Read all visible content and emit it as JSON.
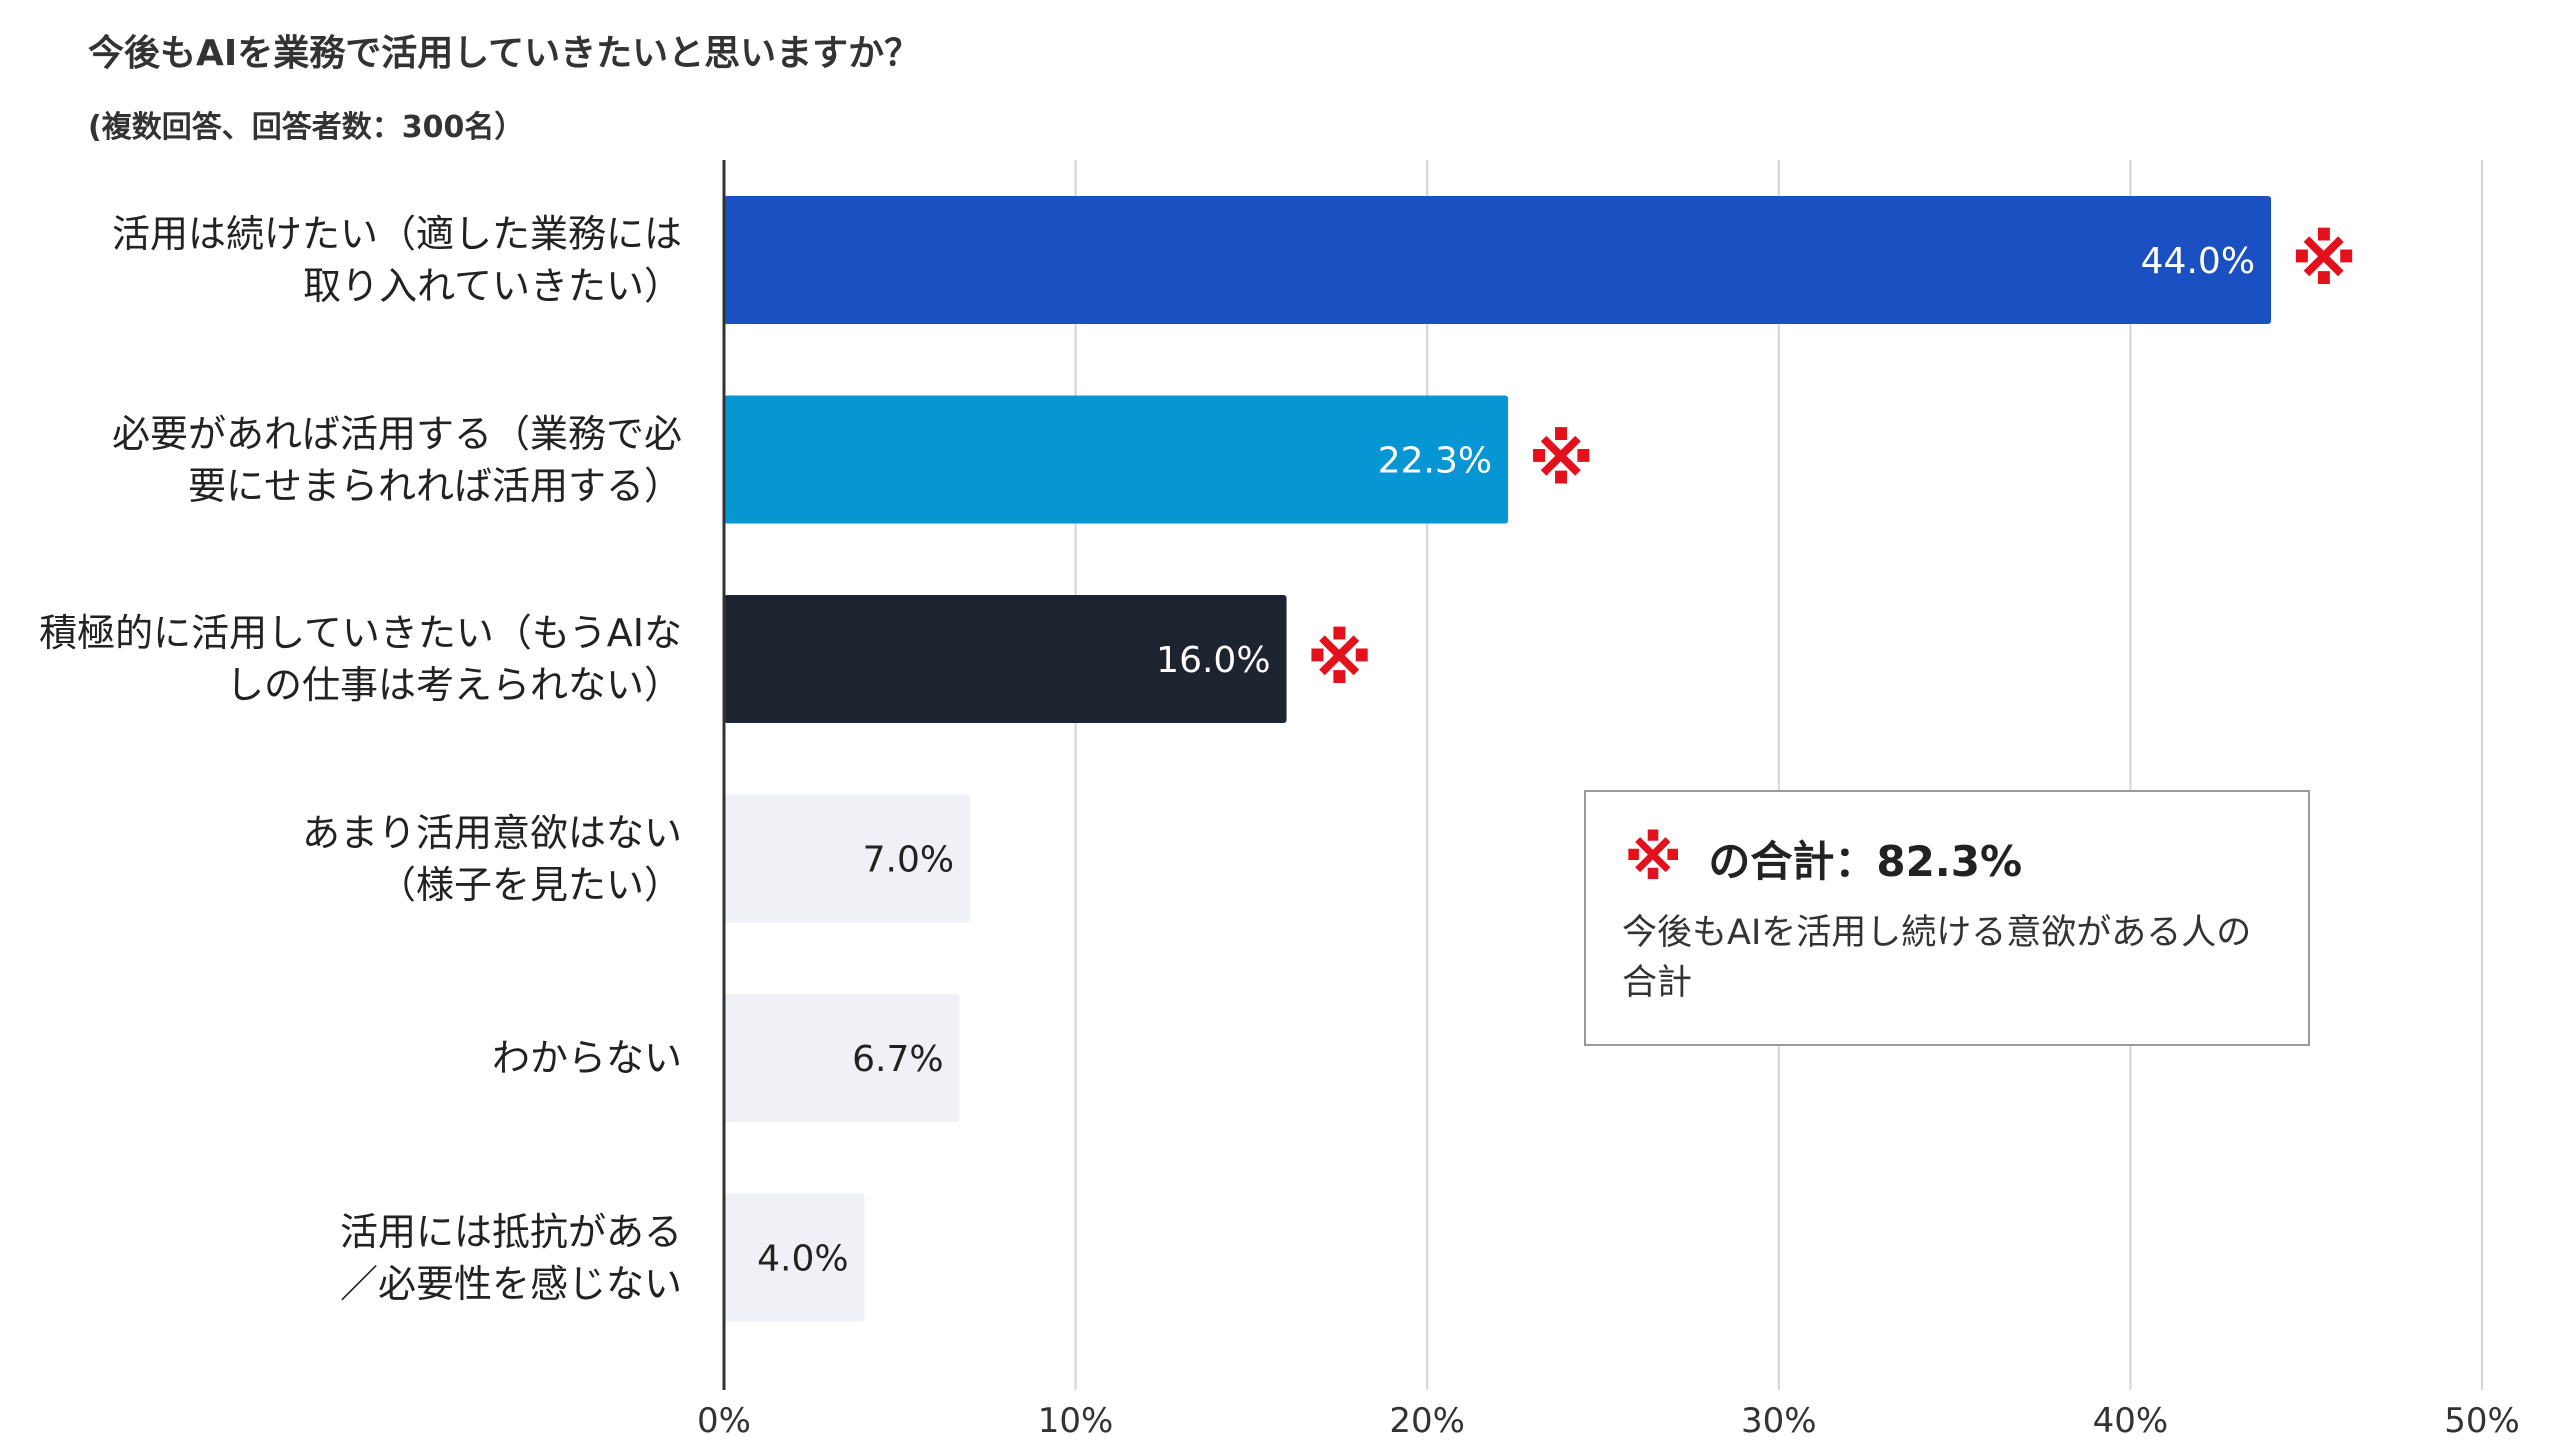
{
  "title": "今後もAIを業務で活用していきたいと思いますか？",
  "subtitle": "(複数回答、回答者数：300名）",
  "colors": {
    "highlight_mark": "#e3111b",
    "grid": "#d4d4d4",
    "axis": "#333333"
  },
  "chart_data": {
    "type": "bar",
    "orientation": "horizontal",
    "categories": [
      [
        "活用は続けたい（適した業務には",
        "取り入れていきたい）"
      ],
      [
        "必要があれば活用する（業務で必",
        "要にせまられれば活用する）"
      ],
      [
        "積極的に活用していきたい（もうAIな",
        "しの仕事は考えられない）"
      ],
      [
        "あまり活用意欲はない",
        "（様子を見たい）"
      ],
      [
        "わからない"
      ],
      [
        "活用には抵抗がある",
        "／必要性を感じない"
      ]
    ],
    "values": [
      44.0,
      22.3,
      16.0,
      7.0,
      6.7,
      4.0
    ],
    "data_labels": [
      "44.0%",
      "22.3%",
      "16.0%",
      "7.0%",
      "6.7%",
      "4.0%"
    ],
    "bar_colors": [
      "#1b50c2",
      "#0796d4",
      "#1e2330",
      "#f0f1f6",
      "#f0f1f6",
      "#f0f1f6"
    ],
    "label_colors": [
      "#ffffff",
      "#ffffff",
      "#ffffff",
      "#222222",
      "#222222",
      "#222222"
    ],
    "marked": [
      true,
      true,
      true,
      false,
      false,
      false
    ],
    "mark_symbol": "※",
    "xlim": [
      0,
      50
    ],
    "xticks": [
      "0%",
      "10%",
      "20%",
      "30%",
      "40%",
      "50%"
    ],
    "grid": true
  },
  "legend_box": {
    "mark": "※",
    "heading": "の合計：82.3%",
    "description": "今後もAIを活用し続ける意欲がある人の合計"
  }
}
